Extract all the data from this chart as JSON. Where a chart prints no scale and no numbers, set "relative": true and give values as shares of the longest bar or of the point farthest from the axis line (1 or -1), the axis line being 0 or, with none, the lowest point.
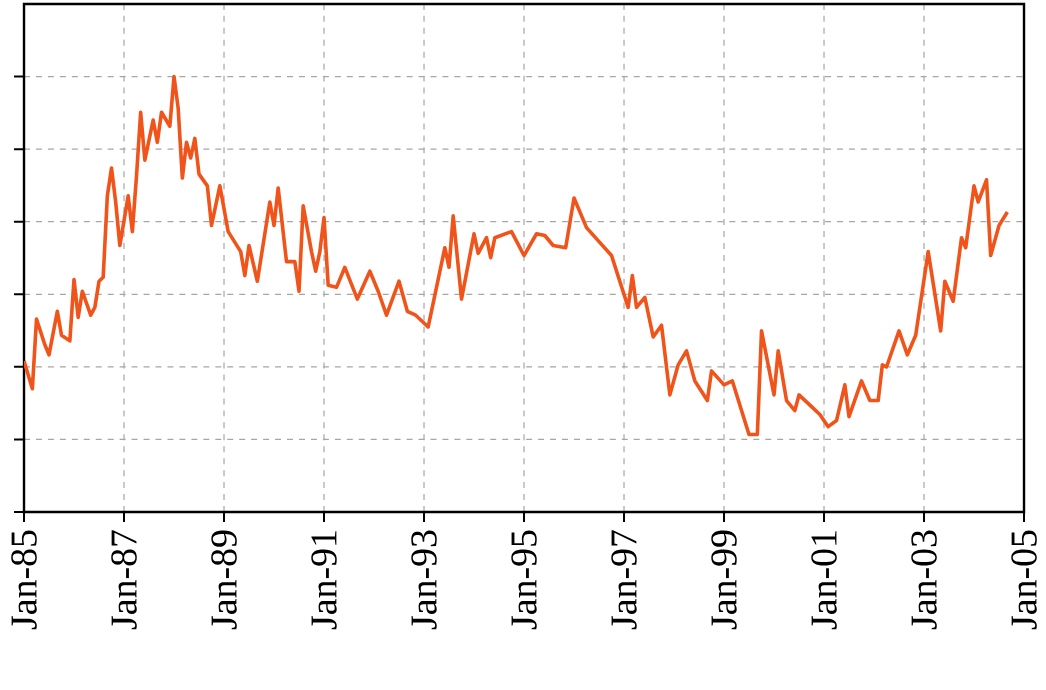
{
  "chart_data": {
    "type": "line",
    "relative": true,
    "grid": true,
    "color": "#f0541a",
    "xlim": [
      "1985-01",
      "2005-01"
    ],
    "xticks": [
      {
        "value": "1985-01",
        "label": "Jan-85"
      },
      {
        "value": "1987-01",
        "label": "Jan-87"
      },
      {
        "value": "1989-01",
        "label": "Jan-89"
      },
      {
        "value": "1991-01",
        "label": "Jan-91"
      },
      {
        "value": "1993-01",
        "label": "Jan-93"
      },
      {
        "value": "1995-01",
        "label": "Jan-95"
      },
      {
        "value": "1997-01",
        "label": "Jan-97"
      },
      {
        "value": "1999-01",
        "label": "Jan-99"
      },
      {
        "value": "2001-01",
        "label": "Jan-01"
      },
      {
        "value": "2003-01",
        "label": "Jan-03"
      },
      {
        "value": "2005-01",
        "label": "Jan-05"
      }
    ],
    "x": [
      "1985-01",
      "1985-03",
      "1985-04",
      "1985-06",
      "1985-07",
      "1985-09",
      "1985-10",
      "1985-12",
      "1986-01",
      "1986-02",
      "1986-03",
      "1986-05",
      "1986-06",
      "1986-07",
      "1986-08",
      "1986-09",
      "1986-10",
      "1986-11",
      "1986-12",
      "1987-02",
      "1987-03",
      "1987-04",
      "1987-05",
      "1987-06",
      "1987-08",
      "1987-09",
      "1987-10",
      "1987-12",
      "1988-01",
      "1988-02",
      "1988-03",
      "1988-04",
      "1988-05",
      "1988-06",
      "1988-07",
      "1988-09",
      "1988-10",
      "1988-12",
      "1989-02",
      "1989-05",
      "1989-06",
      "1989-07",
      "1989-09",
      "1989-12",
      "1990-01",
      "1990-02",
      "1990-04",
      "1990-06",
      "1990-07",
      "1990-08",
      "1990-10",
      "1990-11",
      "1990-12",
      "1991-01",
      "1991-02",
      "1991-04",
      "1991-06",
      "1991-09",
      "1991-12",
      "1992-02",
      "1992-04",
      "1992-07",
      "1992-09",
      "1992-11",
      "1993-02",
      "1993-06",
      "1993-07",
      "1993-08",
      "1993-10",
      "1994-01",
      "1994-02",
      "1994-04",
      "1994-05",
      "1994-06",
      "1994-10",
      "1995-01",
      "1995-04",
      "1995-06",
      "1995-08",
      "1995-11",
      "1996-01",
      "1996-04",
      "1996-07",
      "1996-10",
      "1997-02",
      "1997-03",
      "1997-04",
      "1997-06",
      "1997-08",
      "1997-10",
      "1997-12",
      "1998-02",
      "1998-04",
      "1998-06",
      "1998-09",
      "1998-10",
      "1999-01",
      "1999-03",
      "1999-07",
      "1999-09",
      "1999-10",
      "2000-01",
      "2000-02",
      "2000-04",
      "2000-06",
      "2000-07",
      "2000-10",
      "2000-12",
      "2001-02",
      "2001-04",
      "2001-06",
      "2001-07",
      "2001-10",
      "2001-12",
      "2002-02",
      "2002-03",
      "2002-04",
      "2002-07",
      "2002-09",
      "2002-11",
      "2003-02",
      "2003-05",
      "2003-06",
      "2003-08",
      "2003-10",
      "2003-11",
      "2004-01",
      "2004-02",
      "2004-04",
      "2004-05",
      "2004-07",
      "2004-09"
    ],
    "values": [
      0.347,
      0.283,
      0.443,
      0.384,
      0.361,
      0.461,
      0.406,
      0.393,
      0.534,
      0.447,
      0.507,
      0.452,
      0.47,
      0.53,
      0.539,
      0.726,
      0.79,
      0.712,
      0.612,
      0.726,
      0.644,
      0.772,
      0.918,
      0.808,
      0.9,
      0.849,
      0.918,
      0.886,
      1.0,
      0.927,
      0.767,
      0.849,
      0.813,
      0.858,
      0.776,
      0.749,
      0.658,
      0.749,
      0.644,
      0.598,
      0.543,
      0.612,
      0.53,
      0.712,
      0.658,
      0.744,
      0.575,
      0.575,
      0.507,
      0.703,
      0.598,
      0.553,
      0.598,
      0.676,
      0.521,
      0.516,
      0.562,
      0.489,
      0.553,
      0.507,
      0.452,
      0.53,
      0.461,
      0.452,
      0.425,
      0.607,
      0.562,
      0.68,
      0.489,
      0.639,
      0.594,
      0.63,
      0.584,
      0.63,
      0.644,
      0.589,
      0.639,
      0.635,
      0.612,
      0.607,
      0.721,
      0.653,
      0.621,
      0.589,
      0.47,
      0.543,
      0.47,
      0.493,
      0.402,
      0.429,
      0.269,
      0.338,
      0.37,
      0.301,
      0.256,
      0.324,
      0.292,
      0.301,
      0.178,
      0.178,
      0.416,
      0.269,
      0.37,
      0.256,
      0.233,
      0.269,
      0.242,
      0.224,
      0.196,
      0.21,
      0.292,
      0.219,
      0.301,
      0.256,
      0.256,
      0.338,
      0.333,
      0.416,
      0.361,
      0.406,
      0.598,
      0.416,
      0.53,
      0.484,
      0.63,
      0.607,
      0.749,
      0.712,
      0.763,
      0.589,
      0.658,
      0.689
    ]
  }
}
